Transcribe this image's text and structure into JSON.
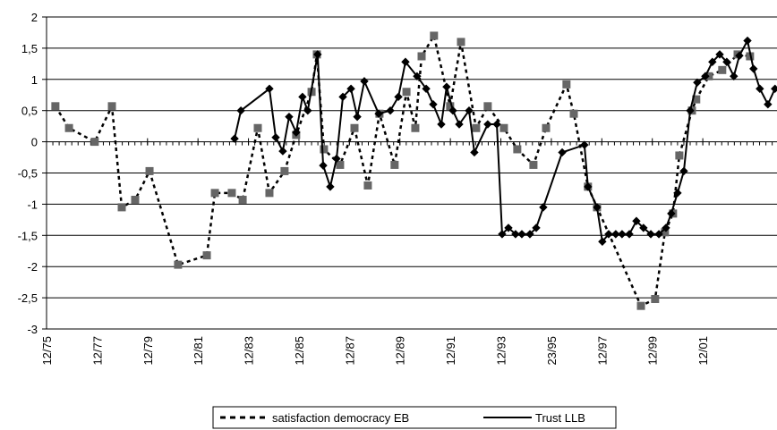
{
  "chart_data": {
    "type": "line",
    "xlim": [
      1976,
      2004.94
    ],
    "xticks": [
      {
        "value": 1976,
        "label": "12/75"
      },
      {
        "value": 1978,
        "label": "12/77"
      },
      {
        "value": 1980,
        "label": "12/79"
      },
      {
        "value": 1982,
        "label": "12/81"
      },
      {
        "value": 1984,
        "label": "12/83"
      },
      {
        "value": 1986,
        "label": "12/85"
      },
      {
        "value": 1988,
        "label": "12/87"
      },
      {
        "value": 1990,
        "label": "12/89"
      },
      {
        "value": 1992,
        "label": "12/91"
      },
      {
        "value": 1994,
        "label": "12/93"
      },
      {
        "value": 1996,
        "label": "23/95"
      },
      {
        "value": 1998,
        "label": "12/97"
      },
      {
        "value": 2000,
        "label": "12/99"
      },
      {
        "value": 2002,
        "label": "12/01"
      }
    ],
    "ylim": [
      -3,
      2
    ],
    "yticks": [
      2,
      {
        "value": 1.5,
        "label": "1,5"
      },
      1,
      {
        "value": 0.5,
        "label": "0,5"
      },
      0,
      {
        "value": -0.5,
        "label": "-0,5"
      },
      -1,
      {
        "value": -1.5,
        "label": "-1,5"
      },
      -2,
      {
        "value": -2.5,
        "label": "-2,5"
      },
      -3
    ],
    "grid": true,
    "legend": "bottom",
    "series": [
      {
        "name": "satisfaction democracy EB",
        "color": "#000000",
        "marker_color": "#666666",
        "dash": true,
        "x": [
          1976.35,
          1976.89,
          1977.91,
          1978.59,
          1978.98,
          1979.51,
          1980.08,
          1981.21,
          1982.35,
          1982.67,
          1983.34,
          1983.77,
          1984.37,
          1984.83,
          1985.43,
          1985.89,
          1986.5,
          1986.71,
          1986.99,
          1987.63,
          1988.2,
          1988.73,
          1989.19,
          1989.79,
          1990.26,
          1990.61,
          1990.86,
          1991.35,
          1991.99,
          1992.42,
          1993.02,
          1993.48,
          1994.12,
          1994.65,
          1995.29,
          1995.79,
          1996.6,
          1996.89,
          1997.45,
          1997.81,
          1999.55,
          2000.11,
          2000.5,
          2000.82,
          2001.07,
          2001.57,
          2001.74,
          2002.24,
          2002.77,
          2003.38,
          2003.87
        ],
        "values": [
          0.57,
          0.22,
          0,
          0.57,
          -1.05,
          -0.93,
          -0.47,
          -1.97,
          -1.82,
          -0.82,
          -0.82,
          -0.93,
          0.22,
          -0.82,
          -0.47,
          0.11,
          0.8,
          1.4,
          -0.12,
          -0.37,
          0.22,
          -0.7,
          0.45,
          -0.37,
          0.8,
          0.22,
          1.37,
          1.7,
          0.57,
          1.6,
          0.22,
          0.57,
          0.22,
          -0.12,
          -0.37,
          0.22,
          0.92,
          0.45,
          -0.72,
          -1.05,
          -2.63,
          -2.52,
          -1.45,
          -1.15,
          -0.22,
          0.5,
          0.68,
          1.05,
          1.15,
          1.4,
          1.37
        ]
      },
      {
        "name": "Trust LLB",
        "color": "#000000",
        "marker_color": "#000000",
        "dash": false,
        "x": [
          1983.45,
          1983.7,
          1984.83,
          1985.08,
          1985.36,
          1985.61,
          1985.89,
          1986.14,
          1986.35,
          1986.74,
          1986.96,
          1987.24,
          1987.49,
          1987.74,
          1988.06,
          1988.31,
          1988.59,
          1989.16,
          1989.62,
          1989.94,
          1990.22,
          1990.68,
          1991.04,
          1991.32,
          1991.64,
          1991.85,
          1992.1,
          1992.35,
          1992.74,
          1992.95,
          1993.48,
          1993.84,
          1994.05,
          1994.3,
          1994.58,
          1994.83,
          1995.15,
          1995.4,
          1995.68,
          1996.43,
          1997.31,
          1997.45,
          1997.81,
          1998.02,
          1998.27,
          1998.55,
          1998.8,
          1999.09,
          1999.37,
          1999.65,
          1999.94,
          2000.26,
          2000.54,
          2000.75,
          2001,
          2001.25,
          2001.5,
          2001.78,
          2002.1,
          2002.38,
          2002.67,
          2002.95,
          2003.23,
          2003.45,
          2003.77,
          2004.01,
          2004.26,
          2004.58,
          2004.86
        ],
        "values": [
          0.05,
          0.5,
          0.85,
          0.07,
          -0.15,
          0.4,
          0.15,
          0.72,
          0.5,
          1.4,
          -0.38,
          -0.72,
          -0.27,
          0.72,
          0.85,
          0.4,
          0.97,
          0.45,
          0.5,
          0.72,
          1.28,
          1.05,
          0.85,
          0.6,
          0.28,
          0.88,
          0.5,
          0.28,
          0.5,
          -0.17,
          0.28,
          0.28,
          -1.48,
          -1.38,
          -1.48,
          -1.48,
          -1.48,
          -1.38,
          -1.05,
          -0.17,
          -0.05,
          -0.72,
          -1.05,
          -1.6,
          -1.48,
          -1.48,
          -1.48,
          -1.48,
          -1.27,
          -1.38,
          -1.48,
          -1.48,
          -1.38,
          -1.15,
          -0.82,
          -0.47,
          0.5,
          0.95,
          1.05,
          1.28,
          1.4,
          1.28,
          1.05,
          1.38,
          1.62,
          1.17,
          0.85,
          0.6,
          0.85
        ]
      }
    ]
  }
}
